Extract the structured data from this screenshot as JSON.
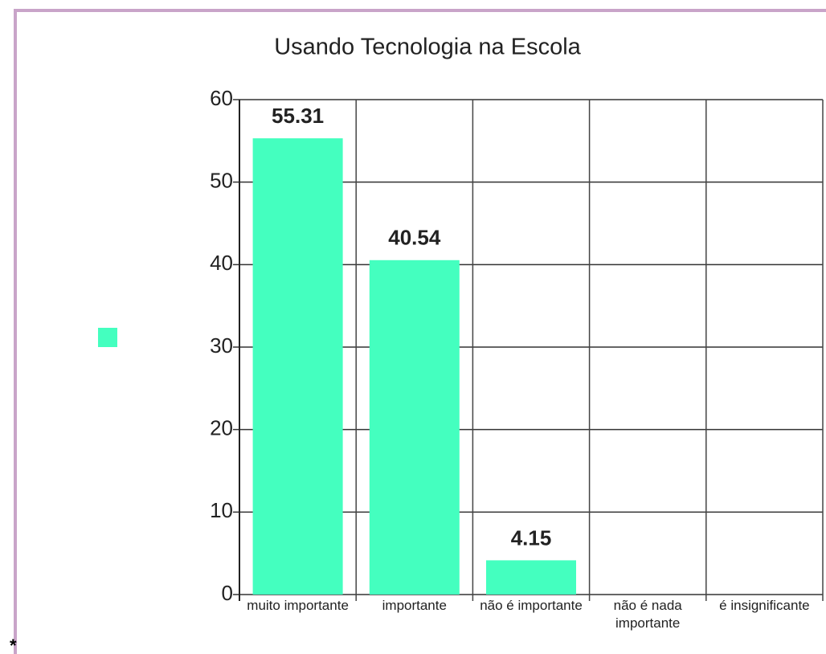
{
  "chart_data": {
    "type": "bar",
    "title": "Usando Tecnologia na Escola",
    "categories": [
      "muito importante",
      "importante",
      "não é importante",
      "não é nada importante",
      "é insignificante"
    ],
    "values": [
      55.31,
      40.54,
      4.15,
      null,
      null
    ],
    "color": "#44ffbf",
    "ylim": [
      0,
      60
    ],
    "yticks": [
      0,
      10,
      20,
      30,
      40,
      50,
      60
    ],
    "grid": true,
    "footnote": "*"
  }
}
